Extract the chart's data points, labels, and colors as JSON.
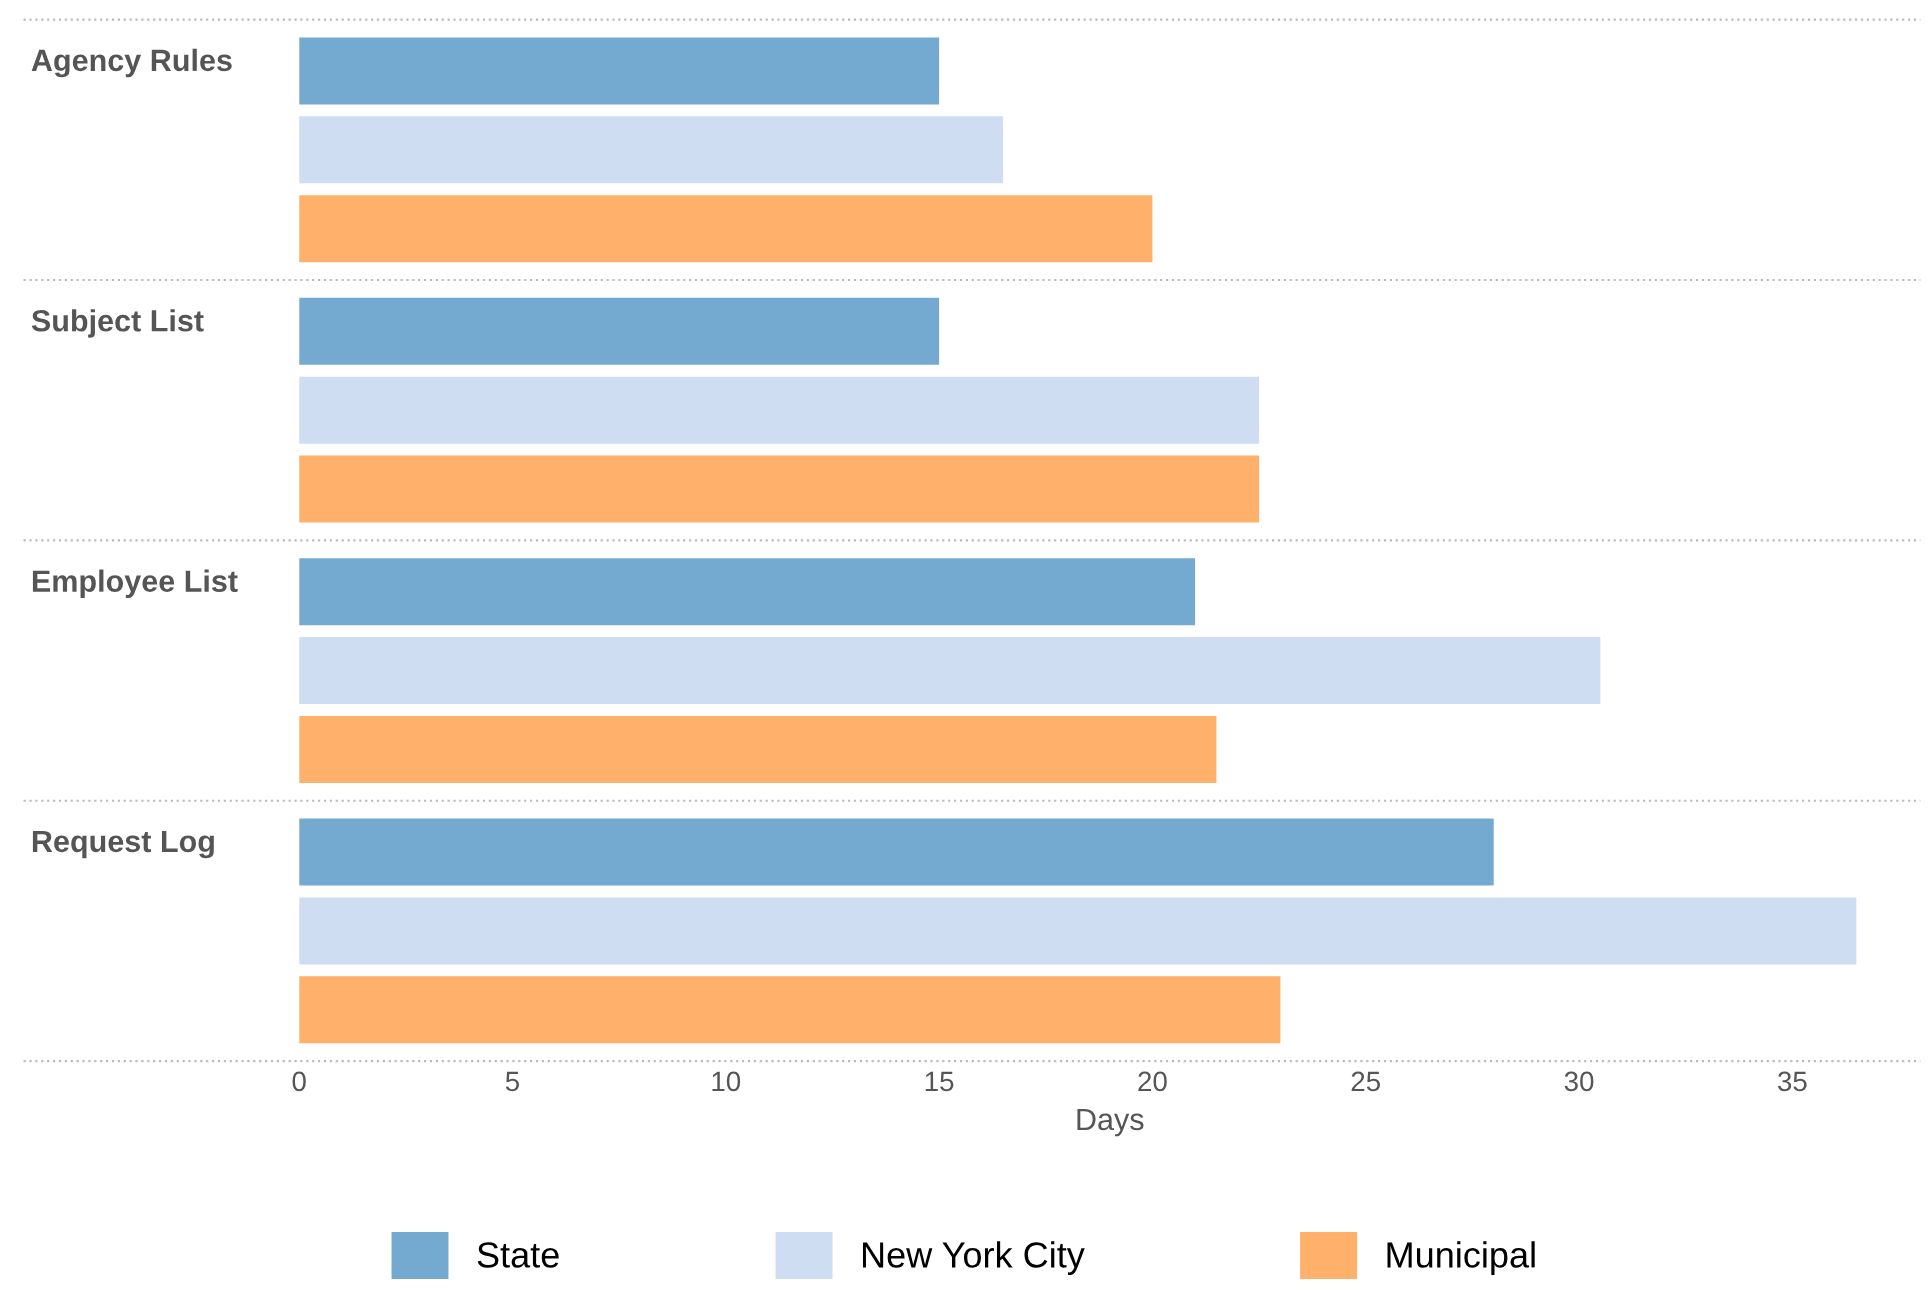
{
  "chart_data": {
    "type": "bar",
    "orientation": "horizontal",
    "xlabel": "Days",
    "categories": [
      "Agency Rules",
      "Subject List",
      "Employee List",
      "Request Log"
    ],
    "series": [
      {
        "name": "State",
        "color": "#75aad0",
        "values": [
          15,
          15,
          21,
          28
        ]
      },
      {
        "name": "New York City",
        "color": "#cfddf2",
        "values": [
          16.5,
          22.5,
          30.5,
          36.5
        ]
      },
      {
        "name": "Municipal",
        "color": "#ffb06b",
        "values": [
          20,
          22.5,
          21.5,
          23
        ]
      }
    ],
    "xlim": [
      0,
      38
    ],
    "xticks": [
      0,
      5,
      10,
      15,
      20,
      25,
      30,
      35
    ],
    "grid": "y",
    "legend": "bottom"
  }
}
